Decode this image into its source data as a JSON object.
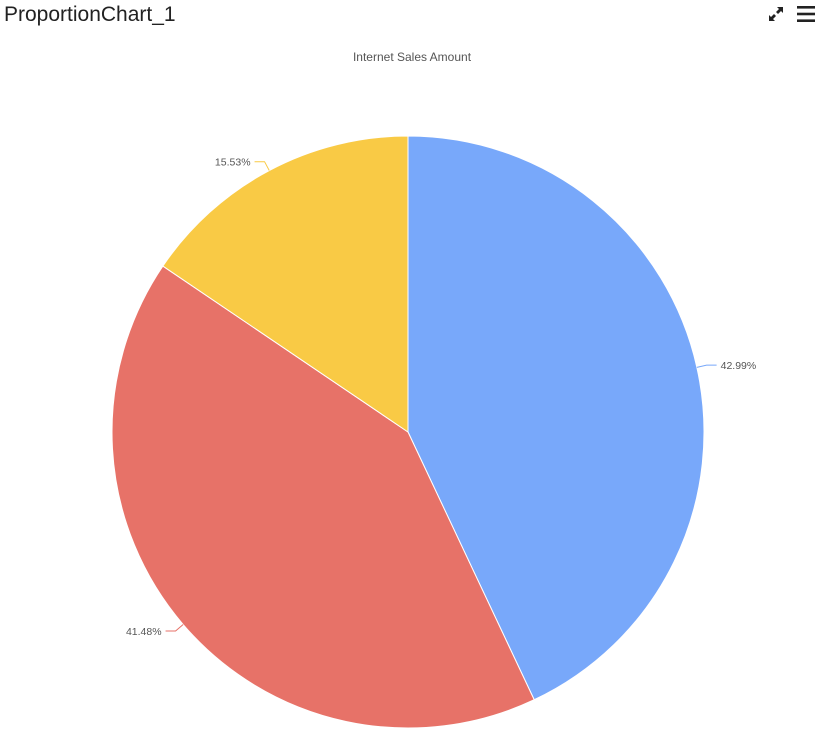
{
  "widget": {
    "title": "ProportionChart_1",
    "expand_icon": "expand-arrows-icon",
    "menu_icon": "hamburger-menu-icon"
  },
  "chart_data": {
    "type": "pie",
    "title": "Internet Sales Amount",
    "slices": [
      {
        "value": 42.99,
        "label": "42.99%",
        "color": "#78a8fa"
      },
      {
        "value": 41.48,
        "label": "41.48%",
        "color": "#e77268"
      },
      {
        "value": 15.53,
        "label": "15.53%",
        "color": "#f9ca45"
      }
    ],
    "start_angle_deg": 0,
    "direction": "clockwise"
  }
}
